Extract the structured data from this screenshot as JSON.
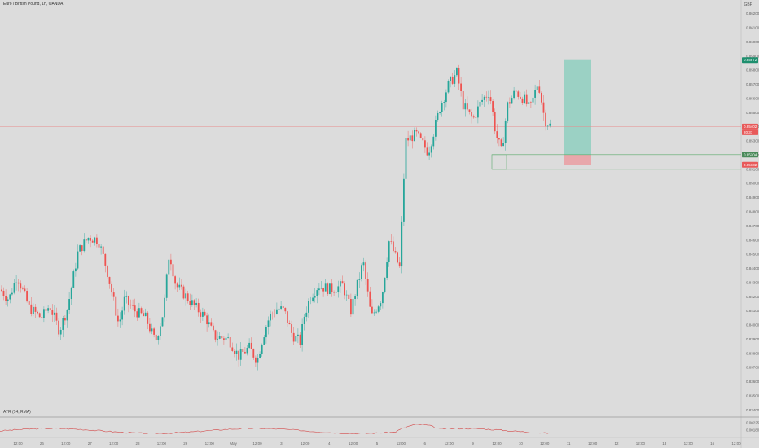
{
  "header": {
    "title": "Euro / British Pound, 1h, OANDA",
    "currency": "GBP"
  },
  "indicator": {
    "label": "ATR (14, RMA)",
    "values": [
      0.00225,
      0.0018
    ]
  },
  "price_axis": {
    "ticks": [
      "0.86200",
      "0.86100",
      "0.86000",
      "0.85900",
      "0.85800",
      "0.85700",
      "0.85600",
      "0.85500",
      "0.85400",
      "0.85300",
      "0.85200",
      "0.85100",
      "0.85000",
      "0.84900",
      "0.84800",
      "0.84700",
      "0.84600",
      "0.84500",
      "0.84400",
      "0.84300",
      "0.84200",
      "0.84100",
      "0.84000",
      "0.83900",
      "0.83800",
      "0.83700",
      "0.83600",
      "0.83500",
      "0.83400"
    ],
    "tags": [
      {
        "value": "0.85872",
        "color": "#1e8f6e"
      },
      {
        "value": "0.85402",
        "color": "#e85a5a"
      },
      {
        "value": "20:37",
        "color": "#e85a5a"
      },
      {
        "value": "0.85204",
        "color": "#4a8a5a"
      },
      {
        "value": "0.85132",
        "color": "#e85a5a"
      }
    ]
  },
  "time_axis": {
    "labels": [
      "12:00",
      "26",
      "12:00",
      "27",
      "12:00",
      "28",
      "12:00",
      "29",
      "12:00",
      "May",
      "12:00",
      "3",
      "12:00",
      "4",
      "12:00",
      "5",
      "12:00",
      "6",
      "12:00",
      "9",
      "12:00",
      "10",
      "12:00",
      "11",
      "12:00",
      "12",
      "12:00",
      "13",
      "12:00",
      "16",
      "12:00"
    ]
  },
  "position": {
    "entry": 0.85204,
    "target": 0.85872,
    "stop": 0.85132
  },
  "colors": {
    "up": "#26a69a",
    "down": "#ef5350",
    "profit_zone": "#8fcfbf",
    "loss_zone": "#e9a1a5",
    "current_line": "#e88b8b",
    "level_line": "#5aaa6a",
    "atr_line": "#d44a4a"
  },
  "chart_data": {
    "type": "candlestick",
    "title": "Euro / British Pound, 1h, OANDA",
    "x_start": "25 Apr 12:00",
    "x_end": "10 May 12:00",
    "x_unit": "1h candles",
    "ylim": [
      0.8335,
      0.8625
    ],
    "close_path": [
      [
        0,
        0.8425
      ],
      [
        10,
        0.8418
      ],
      [
        20,
        0.8435
      ],
      [
        35,
        0.8412
      ],
      [
        50,
        0.8405
      ],
      [
        60,
        0.8414
      ],
      [
        72,
        0.8396
      ],
      [
        82,
        0.8412
      ],
      [
        95,
        0.8452
      ],
      [
        108,
        0.8462
      ],
      [
        120,
        0.846
      ],
      [
        130,
        0.844
      ],
      [
        145,
        0.84
      ],
      [
        152,
        0.8418
      ],
      [
        165,
        0.841
      ],
      [
        178,
        0.8405
      ],
      [
        190,
        0.8388
      ],
      [
        200,
        0.841
      ],
      [
        207,
        0.8452
      ],
      [
        215,
        0.8428
      ],
      [
        228,
        0.842
      ],
      [
        240,
        0.8412
      ],
      [
        252,
        0.8405
      ],
      [
        262,
        0.8392
      ],
      [
        280,
        0.839
      ],
      [
        292,
        0.8378
      ],
      [
        305,
        0.8384
      ],
      [
        315,
        0.8375
      ],
      [
        322,
        0.8392
      ],
      [
        330,
        0.8406
      ],
      [
        340,
        0.8412
      ],
      [
        348,
        0.841
      ],
      [
        358,
        0.8393
      ],
      [
        368,
        0.8388
      ],
      [
        372,
        0.8405
      ],
      [
        380,
        0.842
      ],
      [
        390,
        0.8428
      ],
      [
        405,
        0.8425
      ],
      [
        420,
        0.8428
      ],
      [
        430,
        0.841
      ],
      [
        445,
        0.8445
      ],
      [
        455,
        0.8405
      ],
      [
        468,
        0.842
      ],
      [
        477,
        0.846
      ],
      [
        490,
        0.844
      ],
      [
        497,
        0.853
      ],
      [
        510,
        0.8535
      ],
      [
        525,
        0.8522
      ],
      [
        540,
        0.8555
      ],
      [
        550,
        0.857
      ],
      [
        560,
        0.8578
      ],
      [
        568,
        0.8555
      ],
      [
        580,
        0.8545
      ],
      [
        590,
        0.8558
      ],
      [
        600,
        0.8565
      ],
      [
        608,
        0.8535
      ],
      [
        615,
        0.8522
      ],
      [
        622,
        0.8555
      ],
      [
        632,
        0.8565
      ],
      [
        642,
        0.856
      ],
      [
        650,
        0.8552
      ],
      [
        660,
        0.8572
      ],
      [
        668,
        0.8545
      ],
      [
        676,
        0.854
      ]
    ],
    "position_target": 0.85872,
    "position_entry": 0.85204,
    "position_stop": 0.85132,
    "atr_label": "ATR (14, RMA)"
  }
}
